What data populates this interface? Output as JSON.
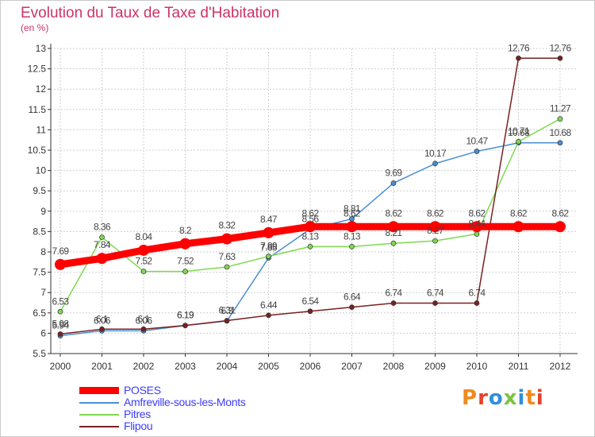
{
  "title": "Evolution du Taux de Taxe d'Habitation",
  "subtitle": "(en %)",
  "brand": {
    "text": "Proxiti",
    "letter_colors": [
      "#f08a1e",
      "#e8402a",
      "#2f8fd8",
      "#7cc241",
      "#2f8fd8",
      "#f08a1e",
      "#e8402a"
    ]
  },
  "chart_data": {
    "type": "line",
    "title": "Evolution du Taux de Taxe d'Habitation",
    "subtitle": "(en %)",
    "categories": [
      "2000",
      "2001",
      "2002",
      "2003",
      "2004",
      "2005",
      "2006",
      "2007",
      "2008",
      "2009",
      "2010",
      "2011",
      "2012"
    ],
    "ylim": [
      5.5,
      13
    ],
    "yticks": [
      "5.5",
      "6",
      "6.5",
      "7",
      "7.5",
      "8",
      "8.5",
      "9",
      "9.5",
      "10",
      "10.5",
      "11",
      "11.5",
      "12",
      "12.5",
      "13"
    ],
    "grid": true,
    "legend_position": "bottom-left",
    "series": [
      {
        "name": "POSES",
        "color": "#ff0000",
        "values": [
          7.69,
          7.84,
          8.04,
          8.2,
          8.32,
          8.47,
          8.62,
          8.62,
          8.62,
          8.62,
          8.62,
          8.62,
          8.62
        ],
        "labels": [
          "7.69",
          "7.84",
          "8.04",
          "8.2",
          "8.32",
          "8.47",
          "8.62",
          "8.62",
          "8.62",
          "8.62",
          "8.62",
          "8.62",
          "8.62"
        ]
      },
      {
        "name": "Amfreville-sous-les-Monts",
        "color": "#4a8fd0",
        "values": [
          5.94,
          6.06,
          6.06,
          6.19,
          6.3,
          7.85,
          8.56,
          8.81,
          9.69,
          10.17,
          10.47,
          10.68,
          10.68
        ],
        "labels": [
          "5.94",
          "6.06",
          "6.06",
          "6.19",
          "6.3",
          "7.85",
          "8.56",
          "8.81",
          "9.69",
          "10.17",
          "10.47",
          "10.68",
          "10.68"
        ]
      },
      {
        "name": "Pitres",
        "color": "#7fd94f",
        "values": [
          6.53,
          8.36,
          7.52,
          7.52,
          7.63,
          7.89,
          8.13,
          8.13,
          8.21,
          8.27,
          8.44,
          10.71,
          11.27
        ],
        "labels": [
          "6.53",
          "8.36",
          "7.52",
          "7.52",
          "7.63",
          "7.89",
          "8.13",
          "8.13",
          "8.21",
          "8.27",
          "8.44",
          "10.71",
          "11.27"
        ]
      },
      {
        "name": "Flipou",
        "color": "#7a2020",
        "values": [
          5.98,
          6.1,
          6.1,
          6.19,
          6.31,
          6.44,
          6.54,
          6.64,
          6.74,
          6.74,
          6.74,
          12.76,
          12.76
        ],
        "labels": [
          "5.98",
          "6.1",
          "6.1",
          "6.19",
          "6.31",
          "6.44",
          "6.54",
          "6.64",
          "6.74",
          "6.74",
          "6.74",
          "12.76",
          "12.76"
        ]
      }
    ]
  }
}
